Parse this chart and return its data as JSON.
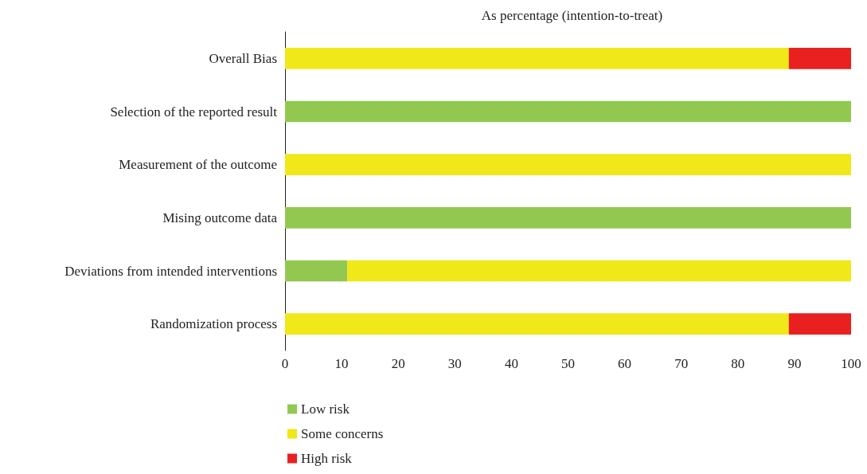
{
  "chart_data": {
    "type": "bar",
    "orientation": "horizontal",
    "stacked": true,
    "title": "As percentage (intention-to-treat)",
    "categories": [
      "Overall Bias",
      "Selection of the reported result",
      "Measurement of the outcome",
      "Mising outcome data",
      "Deviations from intended interventions",
      "Randomization process"
    ],
    "series": [
      {
        "name": "Low risk",
        "color": "#92c850",
        "values": [
          0,
          100,
          0,
          100,
          11,
          0
        ]
      },
      {
        "name": "Some concerns",
        "color": "#f0e818",
        "values": [
          89,
          0,
          100,
          0,
          89,
          89
        ]
      },
      {
        "name": "High risk",
        "color": "#e82020",
        "values": [
          11,
          0,
          0,
          0,
          0,
          11
        ]
      }
    ],
    "xlim": [
      0,
      100
    ],
    "xticks": [
      0,
      10,
      20,
      30,
      40,
      50,
      60,
      70,
      80,
      90,
      100
    ],
    "grid": false,
    "legend": "bottom left"
  }
}
